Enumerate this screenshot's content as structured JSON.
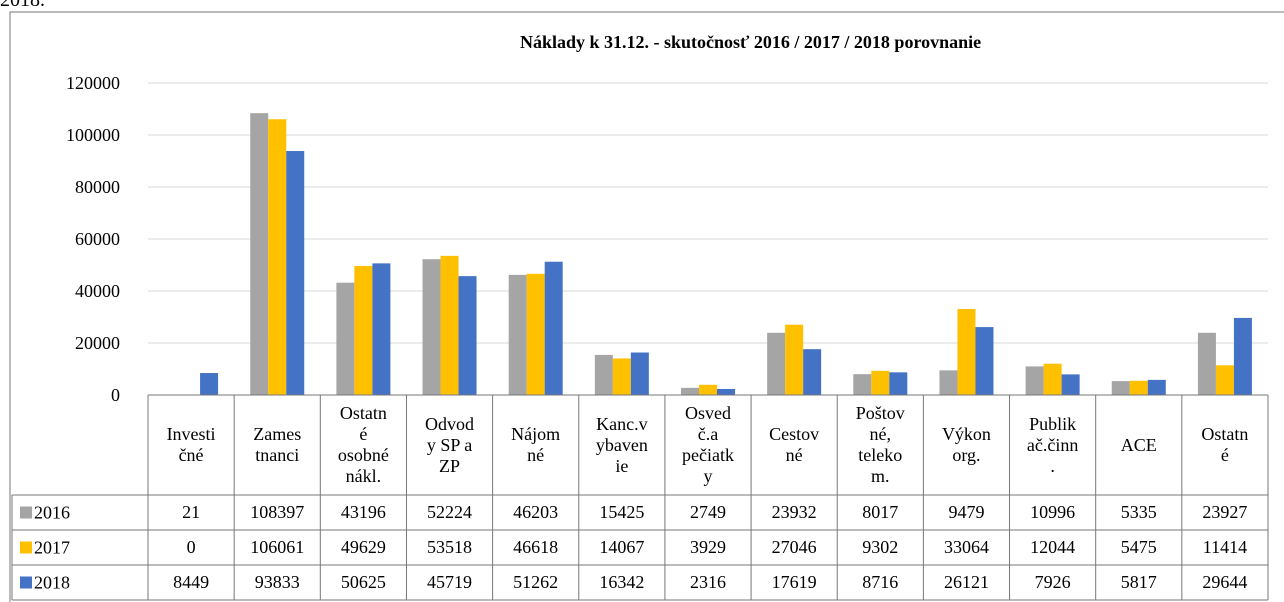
{
  "page_fragment": "2018.",
  "chart_data": {
    "type": "bar",
    "title": "Náklady k 31.12. - skutočnosť 2016 / 2017 / 2018  porovnanie",
    "categories": [
      "Investi\nčné",
      "Zames\ntnanci",
      "Ostatn\né\nosobné\nnákl.",
      "Odvod\ny SP a\nZP",
      "Nájom\nné",
      "Kanc.v\nybaven\nie",
      "Osved\nč.a\npečiatk\ny",
      "Cestov\nné",
      "Poštov\nné,\nteleko\nm.",
      "Výkon\norg.",
      "Publik\nač.činn\n.",
      "ACE",
      "Ostatn\né"
    ],
    "series": [
      {
        "name": "2016",
        "color": "#a5a5a5",
        "values": [
          21,
          108397,
          43196,
          52224,
          46203,
          15425,
          2749,
          23932,
          8017,
          9479,
          10996,
          5335,
          23927
        ]
      },
      {
        "name": "2017",
        "color": "#ffc000",
        "values": [
          0,
          106061,
          49629,
          53518,
          46618,
          14067,
          3929,
          27046,
          9302,
          33064,
          12044,
          5475,
          11414
        ]
      },
      {
        "name": "2018",
        "color": "#4472c4",
        "values": [
          8449,
          93833,
          50625,
          45719,
          51262,
          16342,
          2316,
          17619,
          8716,
          26121,
          7926,
          5817,
          29644
        ]
      }
    ],
    "ylim": [
      0,
      120000
    ],
    "yticks": [
      0,
      20000,
      40000,
      60000,
      80000,
      100000,
      120000
    ],
    "grid": true
  }
}
